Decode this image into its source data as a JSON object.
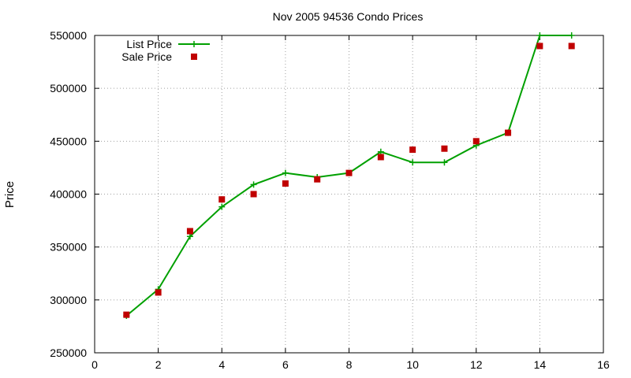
{
  "chart_data": {
    "type": "line",
    "title": "Nov 2005 94536 Condo Prices",
    "xlabel": "",
    "ylabel": "Price",
    "xlim": [
      0,
      16
    ],
    "ylim": [
      250000,
      550000
    ],
    "xticks": [
      0,
      2,
      4,
      6,
      8,
      10,
      12,
      14,
      16
    ],
    "yticks": [
      250000,
      300000,
      350000,
      400000,
      450000,
      500000,
      550000
    ],
    "grid": true,
    "legend_position": "top-left",
    "series": [
      {
        "name": "List Price",
        "style": "line-plus",
        "color": "#00a000",
        "x": [
          1,
          2,
          3,
          4,
          5,
          6,
          7,
          8,
          9,
          10,
          11,
          12,
          13,
          14,
          15
        ],
        "y": [
          285000,
          310000,
          360000,
          388000,
          409000,
          420000,
          416000,
          420000,
          440000,
          430000,
          430000,
          446000,
          458000,
          550000,
          550000
        ]
      },
      {
        "name": "Sale Price",
        "style": "square-points",
        "color": "#c00000",
        "x": [
          1,
          2,
          3,
          4,
          5,
          6,
          7,
          8,
          9,
          10,
          11,
          12,
          13,
          14,
          15
        ],
        "y": [
          286000,
          307000,
          365000,
          395000,
          400000,
          410000,
          414000,
          420000,
          435000,
          442000,
          443000,
          450000,
          458000,
          540000,
          540000
        ]
      }
    ]
  }
}
